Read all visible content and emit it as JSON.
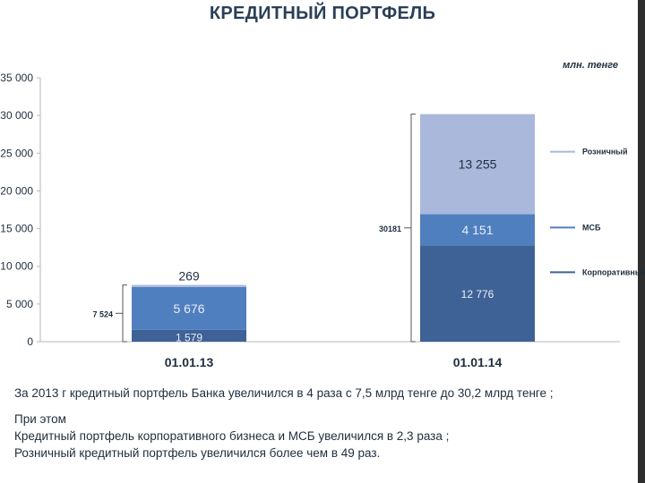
{
  "slide": {
    "title": "КРЕДИТНЫЙ ПОРТФЕЛЬ",
    "notes": [
      "За 2013 г кредитный портфель Банка увеличился  в 4 раза с 7,5 млрд тенге до 30,2 млрд тенге ;",
      "При этом",
      "Кредитный портфель корпоративного бизнеса и МСБ  увеличился в 2,3 раза ;",
      "Розничный кредитный портфель увеличился  более чем в 49 раз."
    ]
  },
  "chart_data": {
    "type": "bar",
    "stacked": true,
    "unit": "млн. тенге",
    "categories": [
      "01.01.13",
      "01.01.14"
    ],
    "series": [
      {
        "name": "Корпоративный",
        "values": [
          1579,
          12776
        ],
        "labels": [
          "1 579",
          "12 776"
        ],
        "color": "#3f6296"
      },
      {
        "name": "МСБ",
        "values": [
          5676,
          4151
        ],
        "labels": [
          "5 676",
          "4 151"
        ],
        "color": "#4f7fbe"
      },
      {
        "name": "Розничный",
        "values": [
          269,
          13255
        ],
        "labels": [
          "269",
          "13 255"
        ],
        "color": "#a9b8db"
      }
    ],
    "totals": [
      7524,
      30181
    ],
    "total_labels": [
      "7 524",
      "30181"
    ],
    "ylim": [
      0,
      35000
    ],
    "yticks": [
      0,
      5000,
      10000,
      15000,
      20000,
      25000,
      30000,
      35000
    ],
    "ytick_labels": [
      "0",
      "5 000",
      "10 000",
      "15 000",
      "20 000",
      "25 000",
      "30 000",
      "35 000"
    ],
    "legend_position": "right",
    "grid": false
  }
}
